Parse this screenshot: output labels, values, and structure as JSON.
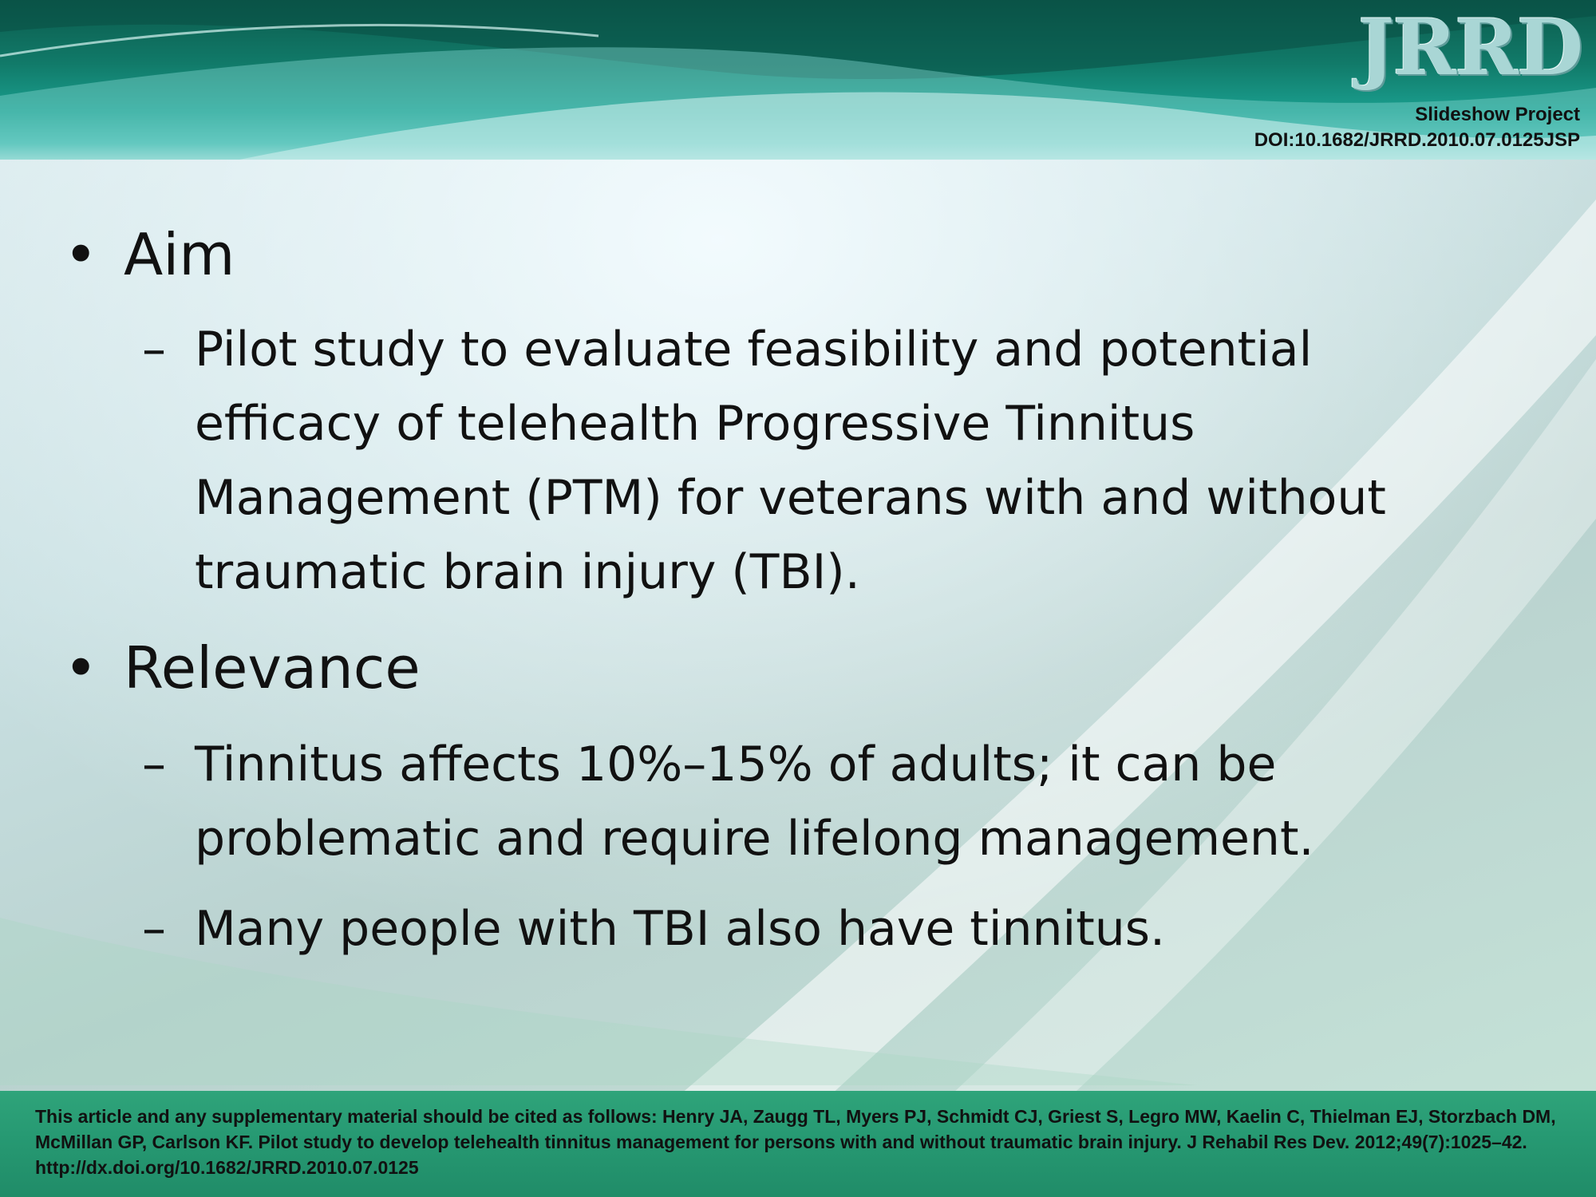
{
  "header": {
    "logo_text": "JRRD",
    "project_label": "Slideshow Project",
    "doi": "DOI:10.1682/JRRD.2010.07.0125JSP"
  },
  "content": {
    "bullets": [
      {
        "label": "Aim",
        "sub": [
          "Pilot study to evaluate feasibility and potential efficacy of telehealth Progressive Tinnitus Management (PTM) for veterans with and without traumatic brain injury (TBI)."
        ]
      },
      {
        "label": "Relevance",
        "sub": [
          "Tinnitus affects 10%–15% of adults; it can be problematic and require lifelong management.",
          "Many people with TBI also have tinnitus."
        ]
      }
    ]
  },
  "footer": {
    "citation": "This article and any supplementary material should be cited as follows: Henry JA, Zaugg TL, Myers PJ, Schmidt CJ, Griest S, Legro MW, Kaelin C, Thielman EJ, Storzbach DM, McMillan GP, Carlson KF. Pilot study to develop telehealth tinnitus management for persons with and without traumatic brain injury. J Rehabil Res Dev. 2012;49(7):1025–42. http://dx.doi.org/10.1682/JRRD.2010.07.0125"
  },
  "symbols": {
    "bullet": "•",
    "dash": "–"
  }
}
